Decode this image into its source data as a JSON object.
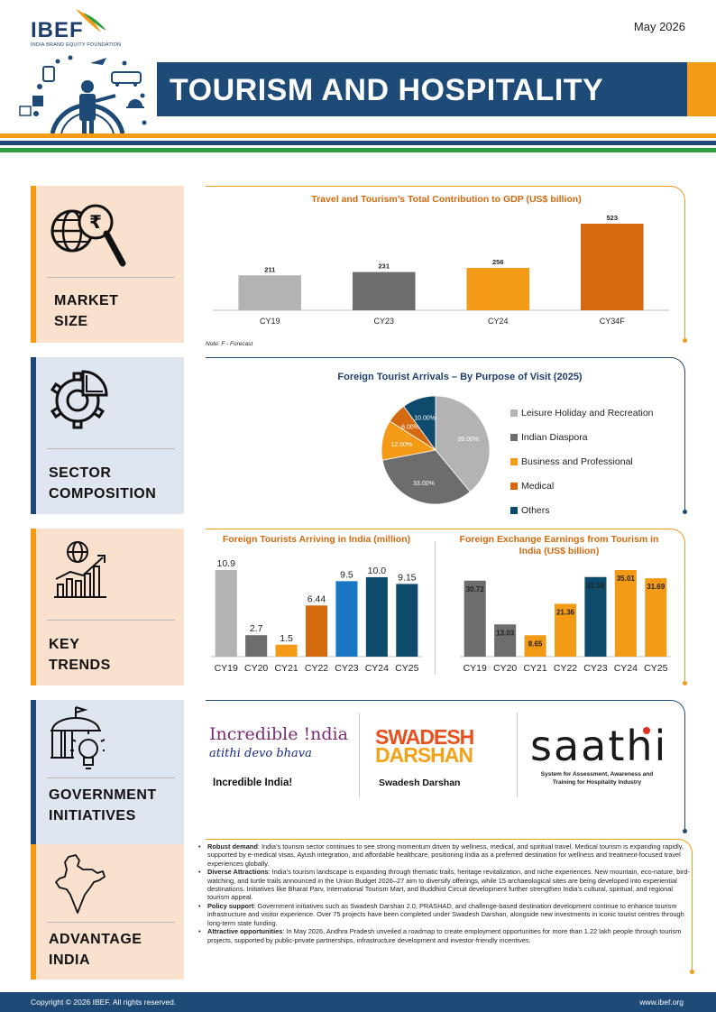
{
  "header": {
    "logo": "IBEF",
    "logo_subtitle": "INDIA BRAND EQUITY FOUNDATION",
    "date": "May 2026",
    "title": "TOURISM AND HOSPITALITY"
  },
  "colors": {
    "navy": "#1e4a78",
    "orange": "#f39a17",
    "dark_orange": "#d4690f",
    "green": "#2e9e3e",
    "gray": "#b3b3b3",
    "dark_gray": "#6d6d6d",
    "blue": "#1976c4",
    "teal_navy": "#0d4a6b"
  },
  "sections": {
    "market_size": {
      "line1": "MARKET",
      "line2": "SIZE",
      "icon": "globe-rupee-magnifier-icon"
    },
    "sector_composition": {
      "line1": "SECTOR",
      "line2": "COMPOSITION",
      "icon": "gear-pie-icon"
    },
    "key_trends": {
      "line1": "KEY",
      "line2": "TRENDS",
      "icon": "globe-growth-chart-icon"
    },
    "government_initiatives": {
      "line1": "GOVERNMENT",
      "line2": "INITIATIVES",
      "icon": "government-building-bulb-icon"
    },
    "advantage_india": {
      "line1": "ADVANTAGE",
      "line2": "INDIA",
      "icon": "india-map-icon"
    }
  },
  "chart_data": [
    {
      "type": "bar",
      "title": "Travel and Tourism’s Total Contribution to GDP (US$ billion)",
      "categories": [
        "CY19",
        "CY23",
        "CY24",
        "CY34F"
      ],
      "values": [
        211,
        231,
        256,
        523
      ],
      "colors": [
        "#b3b3b3",
        "#6d6d6d",
        "#f39a17",
        "#d4690f"
      ],
      "ylim": [
        0,
        523
      ],
      "note": "Note: F - Forecast"
    },
    {
      "type": "pie",
      "title": "Foreign Tourist Arrivals – By Purpose of Visit (2025)",
      "labels": [
        "Leisure Holiday and Recreation",
        "Indian Diaspora",
        "Business and Professional",
        "Medical",
        "Others"
      ],
      "values": [
        39,
        33,
        12,
        6,
        10
      ],
      "value_labels": [
        "39.00%",
        "33.00%",
        "12.00%",
        "6.00%",
        "10.00%"
      ],
      "colors": [
        "#b3b3b3",
        "#6d6d6d",
        "#f39a17",
        "#d4690f",
        "#0d4a6b"
      ],
      "legend": "right"
    },
    {
      "type": "bar",
      "title": "Foreign Tourists Arriving in India (million)",
      "categories": [
        "CY19",
        "CY20",
        "CY21",
        "CY22",
        "CY23",
        "CY24",
        "CY25"
      ],
      "values": [
        10.9,
        2.7,
        1.5,
        6.44,
        9.5,
        10.0,
        9.15
      ],
      "value_labels": [
        "10.9",
        "2.7",
        "1.5",
        "6.44",
        "9.5",
        "10.0",
        "9.15"
      ],
      "colors": [
        "#b3b3b3",
        "#6d6d6d",
        "#f39a17",
        "#d4690f",
        "#1976c4",
        "#0d4a6b",
        "#0d4a6b"
      ],
      "ylim": [
        0,
        10.9
      ]
    },
    {
      "type": "bar",
      "title": "Foreign Exchange Earnings from Tourism in India (US$ billion)",
      "categories": [
        "CY19",
        "CY20",
        "CY21",
        "CY22",
        "CY23",
        "CY24",
        "CY25"
      ],
      "values": [
        30.72,
        13.03,
        8.65,
        21.36,
        32.18,
        35.01,
        31.69
      ],
      "value_labels": [
        "30.72",
        "13.03",
        "8.65",
        "21.36",
        "32.18",
        "35.01",
        "31.69"
      ],
      "colors": [
        "#6d6d6d",
        "#6d6d6d",
        "#f39a17",
        "#f39a17",
        "#0d4a6b",
        "#f39a17",
        "#f39a17"
      ],
      "ylim": [
        0,
        35.01
      ]
    }
  ],
  "government": {
    "incredible_logo": "Incredible !ndia",
    "incredible_tagline": "atithi devo bhava",
    "incredible_caption": "Incredible India!",
    "swadesh_logo_1": "SWADESH",
    "swadesh_logo_2": "DARSHAN",
    "swadesh_caption": "Swadesh Darshan",
    "saathi_logo": "saathi",
    "saathi_caption": "System for Assessment, Awareness and Training for Hospitality Industry"
  },
  "advantage": [
    {
      "label": "Robust demand",
      "text": ": India’s tourism sector continues to see strong momentum driven by wellness, medical, and spiritual travel. Medical tourism is expanding rapidly, supported by e-medical visas, Ayush integration, and affordable healthcare, positioning India as a preferred destination for wellness and treatment-focused travel experiences globally."
    },
    {
      "label": "Diverse Attractions",
      "text": ": India’s tourism landscape is expanding through thematic trails, heritage revitalization, and niche experiences. New mountain, eco-nature, bird-watching, and turtle trails announced in the Union Budget 2026–27 aim to diversify offerings, while 15 archaeological sites are being developed into experiential destinations. Initiatives like Bharat Parv, International Tourism Mart, and Buddhist Circuit development further strengthen India’s cultural, spiritual, and regional tourism appeal."
    },
    {
      "label": "Policy support",
      "text": ": Government initiatives such as Swadesh Darshan 2.0, PRASHAD, and challenge-based destination development continue to enhance tourism infrastructure and visitor experience. Over 75 projects have been completed under Swadesh Darshan, alongside new investments in iconic tourist centres through long-term state funding."
    },
    {
      "label": "Attractive opportunities",
      "text": ": In May 2026, Andhra Pradesh unveiled a roadmap to create employment opportunities for more than 1.22 lakh people through tourism projects, supported by public-private partnerships, infrastructure development and investor-friendly incentives."
    }
  ],
  "footer": {
    "copyright": "Copyright © 2026 IBEF. All rights reserved.",
    "website": "www.ibef.org"
  }
}
